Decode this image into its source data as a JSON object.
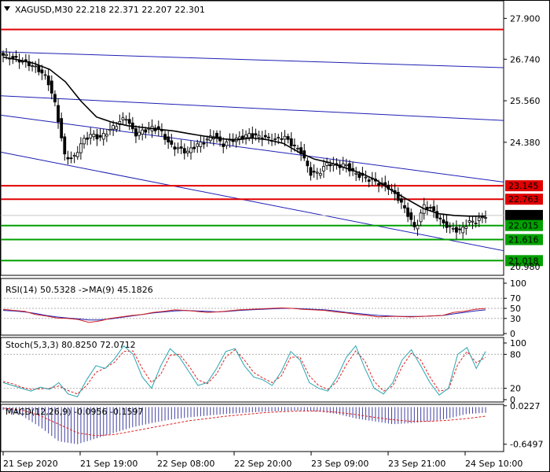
{
  "window": {
    "header": "XAGUSD,M30  22.218 22.371 22.207 22.301"
  },
  "colors": {
    "up_candle": "#ffffff",
    "candle_outline": "#000000",
    "ma_line": "#000000",
    "channel": "#1e1eb4",
    "resistance": "#e00000",
    "support": "#00a000",
    "current_price_bg": "#000000",
    "rsi_ma": "#1e1eb4",
    "rsi_line": "#d22020",
    "stoch_main": "#2aa5b0",
    "stoch_signal": "#e02020",
    "macd_hist": "#4040a0",
    "macd_signal": "#e02020"
  },
  "chart_data": [
    {
      "type": "candlestick",
      "symbol": "XAGUSD",
      "timeframe": "M30",
      "ohlc_last": {
        "open": 22.218,
        "high": 22.371,
        "low": 22.207,
        "close": 22.301
      },
      "ylim": [
        20.6,
        28.4
      ],
      "yticks": [
        "27.900",
        "26.740",
        "25.560",
        "24.380"
      ],
      "xtick_labels": [
        "21 Sep 2020",
        "21 Sep 19:00",
        "22 Sep 08:00",
        "22 Sep 20:00",
        "23 Sep 09:00",
        "23 Sep 21:00",
        "24 Sep 10:00"
      ],
      "close_path": [
        26.85,
        26.78,
        26.7,
        26.6,
        26.45,
        26.2,
        25.4,
        24.0,
        23.9,
        24.4,
        24.6,
        24.5,
        24.7,
        24.9,
        25.1,
        24.6,
        24.7,
        24.8,
        24.7,
        24.3,
        24.2,
        24.1,
        24.3,
        24.4,
        24.6,
        24.3,
        24.45,
        24.5,
        24.6,
        24.55,
        24.5,
        24.45,
        24.55,
        24.3,
        24.1,
        23.5,
        23.5,
        23.8,
        23.7,
        23.75,
        23.5,
        23.4,
        23.3,
        23.2,
        23.1,
        22.8,
        22.4,
        21.9,
        22.6,
        22.45,
        22.1,
        21.95,
        21.85,
        22.1,
        22.15,
        22.3
      ],
      "ma_path": [
        26.8,
        26.72,
        26.62,
        26.45,
        26.1,
        25.55,
        25.1,
        24.95,
        24.85,
        24.8,
        24.75,
        24.7,
        24.62,
        24.55,
        24.48,
        24.45,
        24.5,
        24.45,
        24.35,
        24.1,
        23.9,
        23.8,
        23.65,
        23.5,
        23.3,
        23.0,
        22.75,
        22.5,
        22.35,
        22.3,
        22.28,
        22.28
      ],
      "channel_lines": [
        {
          "from": 26.95,
          "to": 26.5
        },
        {
          "from": 25.7,
          "to": 25.0
        },
        {
          "from": 24.1,
          "to": 21.3
        },
        {
          "from": 25.15,
          "to": 23.25
        }
      ],
      "levels": [
        {
          "value": "27.585",
          "kind": "resistance",
          "labeled": false
        },
        {
          "value": "23.145",
          "kind": "resistance",
          "labeled": true
        },
        {
          "value": "22.763",
          "kind": "resistance",
          "labeled": true
        },
        {
          "value": "22.301",
          "kind": "current",
          "labeled": true
        },
        {
          "value": "22.015",
          "kind": "support",
          "labeled": true
        },
        {
          "value": "21.616",
          "kind": "support",
          "labeled": true
        },
        {
          "value": "21.018",
          "kind": "support",
          "labeled": true
        }
      ],
      "partial_tick": "20.980"
    },
    {
      "type": "line",
      "indicator": "RSI",
      "title": "RSI(14) 50.5328  ->MA(9) 45.1826",
      "ylim": [
        0,
        100
      ],
      "yticks": [
        "100",
        "70",
        "50",
        "30",
        "0"
      ],
      "levels": [
        70,
        50,
        30
      ],
      "rsi_path": [
        48,
        46,
        44,
        38,
        35,
        31,
        30,
        28,
        22,
        25,
        30,
        33,
        36,
        38,
        42,
        44,
        47,
        46,
        44,
        42,
        43,
        45,
        47,
        48,
        49,
        50,
        51,
        50,
        48,
        47,
        46,
        43,
        41,
        38,
        36,
        33,
        34,
        34,
        33,
        34,
        35,
        36,
        42,
        44,
        48,
        50
      ],
      "ma_path": [
        46,
        45,
        43,
        40,
        36,
        33,
        31,
        29,
        27,
        27,
        29,
        32,
        35,
        38,
        41,
        43,
        45,
        46,
        45,
        44,
        43,
        44,
        46,
        47,
        48,
        49,
        50,
        50,
        49,
        48,
        47,
        45,
        42,
        40,
        38,
        36,
        35,
        34,
        34,
        34,
        35,
        36,
        39,
        42,
        45,
        47
      ]
    },
    {
      "type": "line",
      "indicator": "Stochastic",
      "title": "Stoch(5,3,3) 80.8250 72.0712",
      "ylim": [
        0,
        100
      ],
      "yticks": [
        "100",
        "80",
        "20",
        "0"
      ],
      "levels": [
        80,
        20
      ],
      "main_path": [
        30,
        25,
        20,
        15,
        22,
        18,
        30,
        10,
        5,
        35,
        60,
        55,
        72,
        95,
        80,
        40,
        20,
        60,
        90,
        75,
        50,
        25,
        30,
        55,
        85,
        90,
        60,
        40,
        35,
        25,
        50,
        85,
        70,
        30,
        20,
        15,
        40,
        75,
        95,
        55,
        20,
        10,
        30,
        70,
        88,
        60,
        30,
        8,
        20,
        80,
        92,
        55,
        85
      ],
      "signal_path": [
        32,
        28,
        22,
        18,
        19,
        20,
        24,
        16,
        10,
        25,
        48,
        56,
        66,
        85,
        86,
        55,
        30,
        45,
        78,
        80,
        60,
        35,
        28,
        45,
        75,
        88,
        70,
        48,
        38,
        30,
        42,
        75,
        75,
        42,
        25,
        18,
        32,
        62,
        86,
        68,
        32,
        15,
        24,
        58,
        82,
        70,
        40,
        15,
        18,
        62,
        85,
        65,
        75
      ]
    },
    {
      "type": "bar",
      "indicator": "MACD",
      "title": "MACD(12,26,9) -0.0956 -0.1597",
      "ylim": [
        -0.75,
        0.02
      ],
      "yticks": [
        "0.0227",
        "-0.6497"
      ],
      "hist_path": [
        -0.05,
        -0.15,
        -0.35,
        -0.6,
        -0.65,
        -0.55,
        -0.45,
        -0.35,
        -0.28,
        -0.22,
        -0.18,
        -0.15,
        -0.12,
        -0.1,
        -0.08,
        -0.07,
        -0.06,
        -0.08,
        -0.12,
        -0.2,
        -0.25,
        -0.3,
        -0.28,
        -0.25,
        -0.2,
        -0.12,
        -0.1
      ],
      "signal_path": [
        -0.02,
        -0.05,
        -0.15,
        -0.3,
        -0.45,
        -0.5,
        -0.48,
        -0.42,
        -0.36,
        -0.3,
        -0.24,
        -0.2,
        -0.16,
        -0.13,
        -0.1,
        -0.08,
        -0.07,
        -0.07,
        -0.09,
        -0.13,
        -0.18,
        -0.22,
        -0.25,
        -0.25,
        -0.23,
        -0.2,
        -0.16
      ]
    }
  ]
}
